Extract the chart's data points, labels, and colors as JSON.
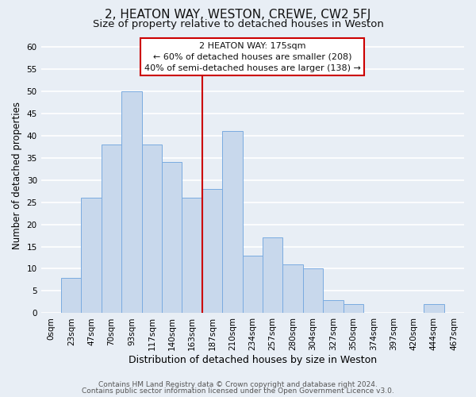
{
  "title": "2, HEATON WAY, WESTON, CREWE, CW2 5FJ",
  "subtitle": "Size of property relative to detached houses in Weston",
  "xlabel": "Distribution of detached houses by size in Weston",
  "ylabel": "Number of detached properties",
  "bar_labels": [
    "0sqm",
    "23sqm",
    "47sqm",
    "70sqm",
    "93sqm",
    "117sqm",
    "140sqm",
    "163sqm",
    "187sqm",
    "210sqm",
    "234sqm",
    "257sqm",
    "280sqm",
    "304sqm",
    "327sqm",
    "350sqm",
    "374sqm",
    "397sqm",
    "420sqm",
    "444sqm",
    "467sqm"
  ],
  "bar_values": [
    0,
    8,
    26,
    38,
    50,
    38,
    34,
    26,
    28,
    41,
    13,
    17,
    11,
    10,
    3,
    2,
    0,
    0,
    0,
    2,
    0
  ],
  "bar_color": "#c8d8ec",
  "bar_edge_color": "#7aabe0",
  "vline_x": 7.5,
  "vline_color": "#cc0000",
  "ylim": [
    0,
    62
  ],
  "yticks": [
    0,
    5,
    10,
    15,
    20,
    25,
    30,
    35,
    40,
    45,
    50,
    55,
    60
  ],
  "annotation_title": "2 HEATON WAY: 175sqm",
  "annotation_line1": "← 60% of detached houses are smaller (208)",
  "annotation_line2": "40% of semi-detached houses are larger (138) →",
  "annotation_box_facecolor": "#ffffff",
  "annotation_box_edgecolor": "#cc0000",
  "footer_line1": "Contains HM Land Registry data © Crown copyright and database right 2024.",
  "footer_line2": "Contains public sector information licensed under the Open Government Licence v3.0.",
  "background_color": "#e8eef5",
  "plot_background_color": "#e8eef5",
  "grid_color": "#ffffff",
  "title_fontsize": 11,
  "subtitle_fontsize": 9.5,
  "xlabel_fontsize": 9,
  "ylabel_fontsize": 8.5,
  "tick_fontsize": 7.5,
  "annotation_fontsize": 8,
  "footer_fontsize": 6.5
}
